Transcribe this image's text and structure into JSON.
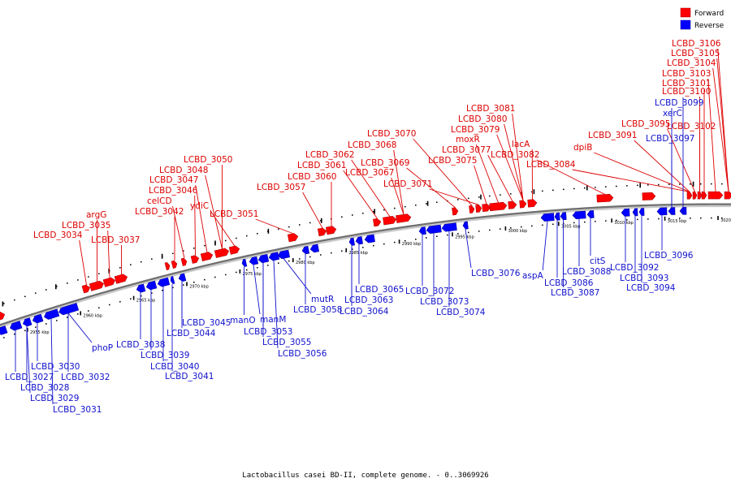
{
  "caption": "Lactobacillus casei BD-II, complete genome. - 0..3069926",
  "legend": [
    {
      "label": "Forward",
      "color": "#ff0000"
    },
    {
      "label": "Reverse",
      "color": "#0000ff"
    }
  ],
  "ticks": [
    "2955 kbp",
    "2960 kbp",
    "2965 kbp",
    "2970 kbp",
    "2975 kbp",
    "2980 kbp",
    "2985 kbp",
    "2990 kbp",
    "2995 kbp",
    "3000 kbp",
    "3005 kbp",
    "3010 kbp",
    "3015 kbp",
    "3020 kbp",
    "3025 kbp"
  ],
  "forward_labels": [
    "LCBD_3034",
    "argG",
    "LCBD_3035",
    "LCBD_3037",
    "LCBD_3042",
    "celCD",
    "LCBD_3046",
    "LCBD_3047",
    "LCBD_3048",
    "ydiC",
    "LCBD_3050",
    "LCBD_3051",
    "LCBD_3057",
    "LCBD_3060",
    "LCBD_3061",
    "LCBD_3062",
    "LCBD_3067",
    "LCBD_3068",
    "LCBD_3069",
    "LCBD_3070",
    "LCBD_3071",
    "LCBD_3075",
    "LCBD_3077",
    "moxR",
    "LCBD_3079",
    "LCBD_3080",
    "LCBD_3081",
    "lacA",
    "LCBD_3082",
    "LCBD_3084",
    "dpiB",
    "LCBD_3091",
    "LCBD_3095",
    "LCBD_3102",
    "LCBD_3100",
    "LCBD_3101",
    "LCBD_3103",
    "LCBD_3104",
    "LCBD_3105",
    "LCBD_3106"
  ],
  "reverse_labels": [
    "LCBD_3027",
    "LCBD_3028",
    "LCBD_3029",
    "LCBD_3030",
    "LCBD_3031",
    "LCBD_3032",
    "phoP",
    "LCBD_3038",
    "LCBD_3039",
    "LCBD_3040",
    "LCBD_3041",
    "LCBD_3044",
    "LCBD_3045",
    "manO",
    "manM",
    "LCBD_3053",
    "LCBD_3055",
    "LCBD_3056",
    "mutR",
    "LCBD_3058",
    "LCBD_3063",
    "LCBD_3064",
    "LCBD_3065",
    "LCBD_3072",
    "LCBD_3073",
    "LCBD_3074",
    "LCBD_3076",
    "aspA",
    "LCBD_3086",
    "LCBD_3087",
    "LCBD_3088",
    "citS",
    "LCBD_3092",
    "LCBD_3093",
    "LCBD_3094",
    "LCBD_3096",
    "LCBD_3097",
    "xerC",
    "LCBD_3099"
  ]
}
